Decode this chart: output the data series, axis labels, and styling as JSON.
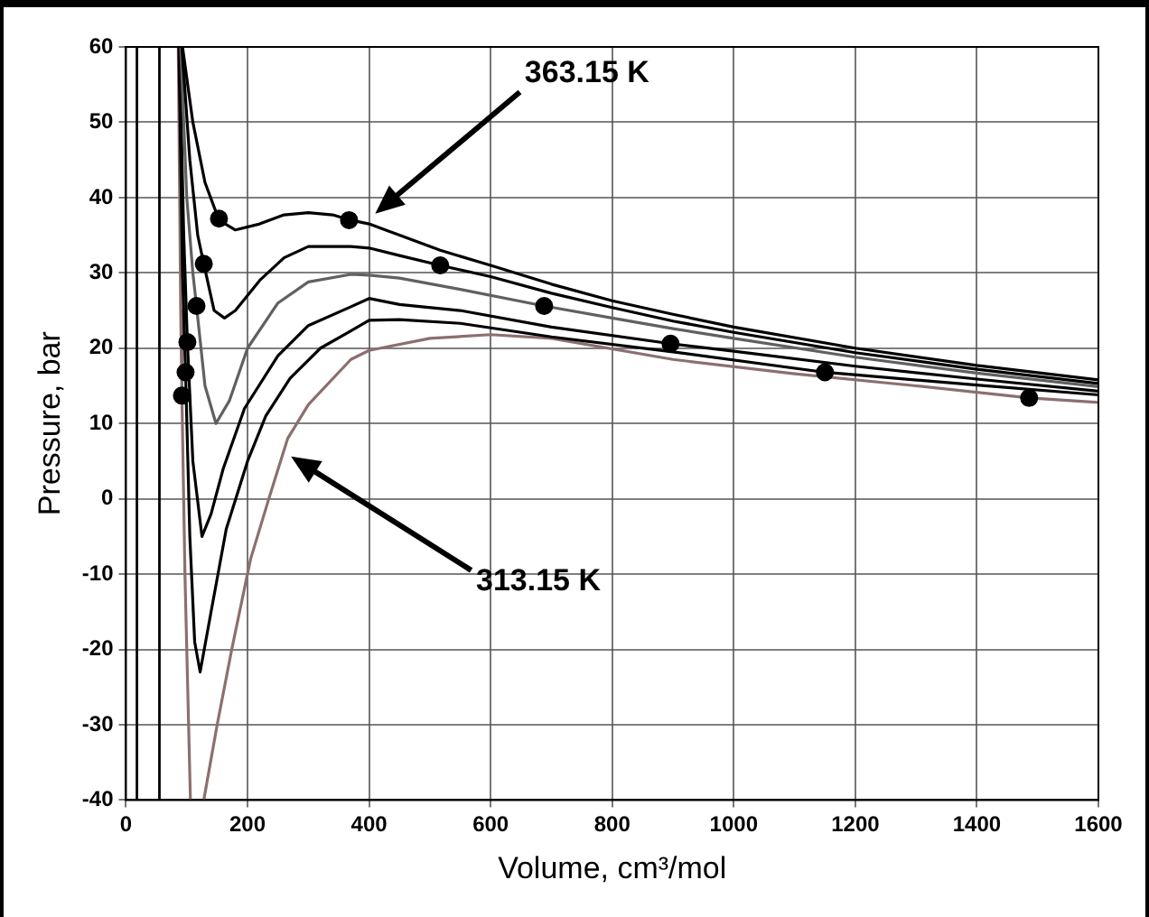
{
  "chart_data": {
    "type": "line",
    "xlabel": "Volume, cm³/mol",
    "ylabel": "Pressure, bar",
    "xlim": [
      0,
      1600
    ],
    "xticks": [
      0,
      200,
      400,
      600,
      800,
      1000,
      1200,
      1400,
      1600
    ],
    "ylim": [
      -40,
      60
    ],
    "yticks": [
      -40,
      -30,
      -20,
      -10,
      0,
      10,
      20,
      30,
      40,
      50,
      60
    ],
    "grid": true,
    "legend": false,
    "line_style": "solid",
    "series": [
      {
        "color": "#000000",
        "marker": "none",
        "x": [
          93,
          110,
          130,
          153,
          180,
          220,
          260,
          300,
          340,
          370,
          400,
          450,
          517,
          600,
          700,
          800,
          900,
          1000,
          1200,
          1400,
          1600
        ],
        "values": [
          60,
          50,
          42,
          37,
          35.7,
          36.5,
          37.7,
          38,
          37.7,
          37,
          36.5,
          35,
          33,
          31,
          28.5,
          26.3,
          24.5,
          22.8,
          20,
          17.7,
          15.8
        ]
      },
      {
        "color": "#000000",
        "marker": "none",
        "x": [
          92,
          105,
          118,
          128,
          145,
          162,
          180,
          220,
          260,
          300,
          370,
          400,
          450,
          517,
          600,
          700,
          800,
          900,
          1000,
          1200,
          1400,
          1600
        ],
        "values": [
          60,
          45,
          35,
          31.2,
          25,
          24,
          25,
          29,
          32,
          33.5,
          33.5,
          33.3,
          32.3,
          31,
          29.5,
          27.3,
          25.4,
          23.6,
          22.1,
          19.4,
          17.2,
          15.3
        ]
      },
      {
        "color": "#606060",
        "marker": "none",
        "x": [
          90,
          100,
          110,
          116,
          130,
          148,
          170,
          200,
          250,
          300,
          370,
          400,
          450,
          550,
          688,
          800,
          900,
          1000,
          1200,
          1400,
          1600
        ],
        "values": [
          60,
          40,
          30,
          25.6,
          15,
          10,
          13,
          20,
          26,
          28.8,
          29.8,
          29.7,
          29.3,
          27.8,
          25.6,
          24,
          22.6,
          21.3,
          18.8,
          16.7,
          14.9
        ]
      },
      {
        "color": "#000000",
        "marker": "none",
        "x": [
          88,
          95,
          101,
          110,
          125,
          140,
          160,
          195,
          250,
          300,
          370,
          400,
          450,
          550,
          700,
          896,
          1000,
          1200,
          1400,
          1600
        ],
        "values": [
          60,
          35,
          20.8,
          5,
          -5,
          -2,
          4,
          12,
          19,
          23,
          25.5,
          26.6,
          25.8,
          25,
          22.8,
          20.6,
          19.6,
          17.6,
          15.9,
          14.3
        ]
      },
      {
        "color": "#000000",
        "marker": "none",
        "x": [
          87,
          93,
          98,
          105,
          113,
          122,
          140,
          165,
          200,
          230,
          270,
          320,
          370,
          400,
          450,
          550,
          700,
          900,
          1150,
          1400,
          1600
        ],
        "values": [
          60,
          30,
          16.8,
          -5,
          -19,
          -23,
          -15,
          -4,
          5,
          11,
          16,
          20,
          22.3,
          23.7,
          23.8,
          23.3,
          21.5,
          19.5,
          16.8,
          15.1,
          13.8
        ]
      },
      {
        "color": "#8c6f6f",
        "marker": "none",
        "x": [
          86,
          90,
          92,
          97,
          103,
          106,
          117,
          128,
          150,
          174,
          205,
          235,
          266,
          300,
          370,
          400,
          500,
          600,
          700,
          900,
          1100,
          1300,
          1486,
          1600
        ],
        "values": [
          60,
          25,
          13.7,
          -10,
          -30,
          -40,
          null,
          -40,
          -30,
          -20,
          -8,
          0,
          8,
          12.5,
          18.5,
          19.7,
          21.3,
          21.8,
          21.3,
          18.5,
          16.6,
          15,
          13.4,
          12.8
        ]
      },
      {
        "type": "scatter",
        "color": "#000000",
        "marker": "circle",
        "x": [
          153,
          367,
          128,
          517,
          116,
          688,
          101,
          896,
          98,
          1150,
          92,
          1486
        ],
        "values": [
          37.2,
          37,
          31.2,
          31,
          25.6,
          25.6,
          20.8,
          20.6,
          16.8,
          16.8,
          13.7,
          13.4
        ]
      }
    ],
    "ref_lines": [
      {
        "axis": "x",
        "value": 18,
        "color": "#000000"
      },
      {
        "axis": "x",
        "value": 55,
        "color": "#000000"
      }
    ],
    "annotations": [
      "363.15 K",
      "313.15 K"
    ]
  }
}
